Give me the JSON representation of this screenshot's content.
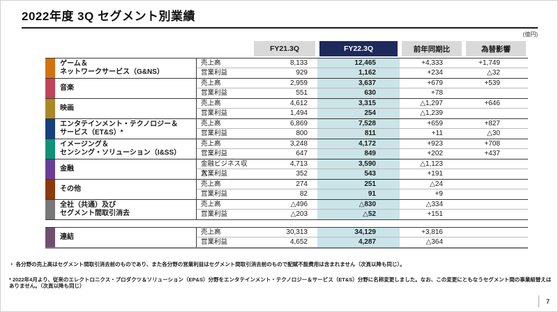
{
  "title": "2022年度 3Q セグメント別業績",
  "unit_label": "(億円)",
  "page_number": "7",
  "colors": {
    "header_current_bg": "#1e2a5c",
    "header_bg": "#d9d9d9",
    "current_column_highlight": "#cbe4e8"
  },
  "table": {
    "columns": [
      "FY21.3Q",
      "FY22.3Q",
      "前年同期比",
      "為替影響"
    ],
    "segments": [
      {
        "name_lines": [
          "ゲーム＆",
          "ネットワークサービス（G&NS）"
        ],
        "color": "#d2720f",
        "rows": [
          {
            "label": "売上高",
            "fy21": "8,133",
            "fy22": "12,465",
            "yoy": "+4,333",
            "fx": "+1,749"
          },
          {
            "label": "営業利益",
            "fy21": "929",
            "fy22": "1,162",
            "yoy": "+234",
            "fx": "△32"
          }
        ]
      },
      {
        "name_lines": [
          "音楽"
        ],
        "color": "#c24258",
        "rows": [
          {
            "label": "売上高",
            "fy21": "2,959",
            "fy22": "3,637",
            "yoy": "+679",
            "fx": "+539"
          },
          {
            "label": "営業利益",
            "fy21": "551",
            "fy22": "630",
            "yoy": "+78",
            "fx": ""
          }
        ]
      },
      {
        "name_lines": [
          "映画"
        ],
        "color": "#ab8827",
        "rows": [
          {
            "label": "売上高",
            "fy21": "4,612",
            "fy22": "3,315",
            "yoy": "△1,297",
            "fx": "+646"
          },
          {
            "label": "営業利益",
            "fy21": "1,494",
            "fy22": "254",
            "yoy": "△1,239",
            "fx": ""
          }
        ]
      },
      {
        "name_lines": [
          "エンタテインメント・テクノロジー＆",
          "サービス（ET&S）*"
        ],
        "color": "#153f7e",
        "rows": [
          {
            "label": "売上高",
            "fy21": "6,869",
            "fy22": "7,528",
            "yoy": "+659",
            "fx": "+827"
          },
          {
            "label": "営業利益",
            "fy21": "800",
            "fy22": "811",
            "yoy": "+11",
            "fx": "△30"
          }
        ]
      },
      {
        "name_lines": [
          "イメージング＆",
          "センシング・ソリューション（I&SS）"
        ],
        "color": "#0f9278",
        "rows": [
          {
            "label": "売上高",
            "fy21": "3,248",
            "fy22": "4,172",
            "yoy": "+923",
            "fx": "+708"
          },
          {
            "label": "営業利益",
            "fy21": "647",
            "fy22": "849",
            "yoy": "+202",
            "fx": "+437"
          }
        ]
      },
      {
        "name_lines": [
          "金融"
        ],
        "color": "#6b3d98",
        "rows": [
          {
            "label": "金融ビジネス収入",
            "fy21": "4,713",
            "fy22": "3,590",
            "yoy": "△1,123",
            "fx": ""
          },
          {
            "label": "営業利益",
            "fy21": "352",
            "fy22": "543",
            "yoy": "+191",
            "fx": ""
          }
        ]
      },
      {
        "name_lines": [
          "その他"
        ],
        "color": "#8b3a0d",
        "rows": [
          {
            "label": "売上高",
            "fy21": "274",
            "fy22": "251",
            "yoy": "△24",
            "fx": ""
          },
          {
            "label": "営業利益",
            "fy21": "82",
            "fy22": "91",
            "yoy": "+9",
            "fx": ""
          }
        ]
      },
      {
        "name_lines": [
          "全社（共通）及び",
          "セグメント間取引消去"
        ],
        "color": "#787878",
        "rows": [
          {
            "label": "売上高",
            "fy21": "△496",
            "fy22": "△830",
            "yoy": "△334",
            "fx": ""
          },
          {
            "label": "営業利益",
            "fy21": "△203",
            "fy22": "△52",
            "yoy": "+151",
            "fx": ""
          }
        ]
      }
    ],
    "consolidated": {
      "name_lines": [
        "連結"
      ],
      "color": "#6f4f6d",
      "rows": [
        {
          "label": "売上高",
          "fy21": "30,313",
          "fy22": "34,129",
          "yoy": "+3,816",
          "fx": ""
        },
        {
          "label": "営業利益",
          "fy21": "4,652",
          "fy22": "4,287",
          "yoy": "△364",
          "fx": ""
        }
      ]
    }
  },
  "notes": [
    "・ 各分野の売上高はセグメント間取引消去前のものであり、また各分野の営業利益はセグメント間取引消去前のもので配賦不能費用は含まれません（次頁以降も同じ）。",
    "*  2022年4月より、従来のエレクトロニクス・プロダクツ＆ソリューション（EP&S）分野をエンタテインメント・テクノロジー＆サービス（ET&S）分野に名称変更しました。なお、この変更にともなうセグメント間の事業組替えはありません。（次頁以降も同じ）"
  ]
}
